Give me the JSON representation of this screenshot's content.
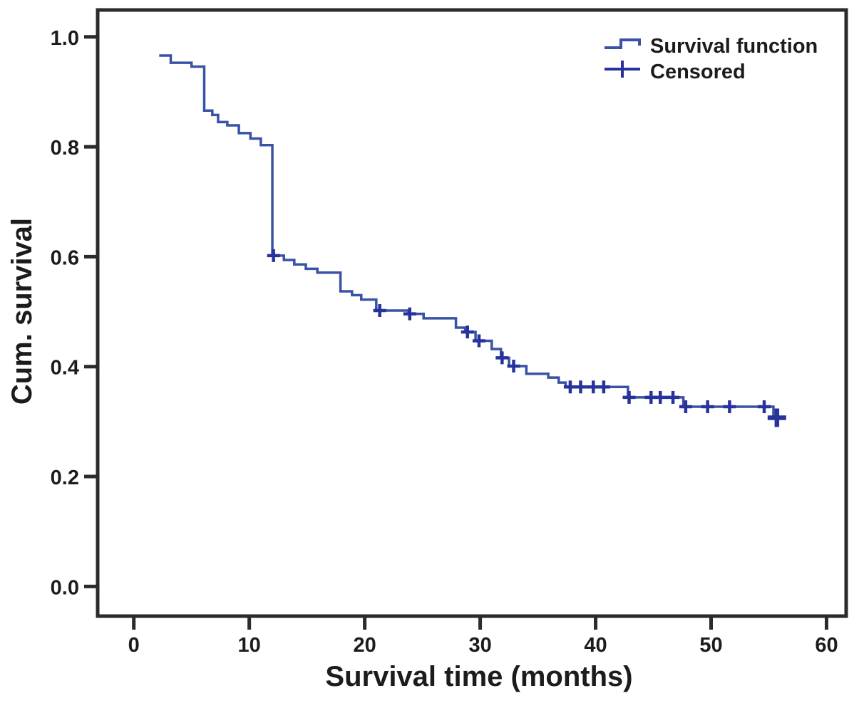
{
  "figure": {
    "background": "#ffffff",
    "plot_area_background": "#ffffff",
    "frame_color": "#2b2b2b"
  },
  "chart_data": {
    "type": "line",
    "subtype": "kaplan-meier-step",
    "title": "",
    "xlabel": "Survival time (months)",
    "ylabel": "Cum. survival",
    "grid": false,
    "xlim": [
      -3.13,
      61.7
    ],
    "ylim": [
      -0.054,
      1.049
    ],
    "x_ticks": [
      0,
      10,
      20,
      30,
      40,
      50,
      60
    ],
    "y_ticks": [
      {
        "v": 1.0,
        "label": "1.0"
      },
      {
        "v": 0.8,
        "label": "0.8"
      },
      {
        "v": 0.6,
        "label": "0.6"
      },
      {
        "v": 0.4,
        "label": "0.4"
      },
      {
        "v": 0.2,
        "label": "0.2"
      },
      {
        "v": 0.0,
        "label": "0.0"
      }
    ],
    "legend": {
      "position": "top-right",
      "entries": [
        {
          "label": "Survival function",
          "marker": "step-line"
        },
        {
          "label": "Censored",
          "marker": "plus"
        }
      ]
    },
    "colors": {
      "curve": "#3952a5",
      "censor": "#27339b",
      "axis": "#2b2b2b",
      "text": "#1c1c1c"
    },
    "series": [
      {
        "name": "Survival function",
        "start": [
          2.2,
          0.966
        ],
        "steps": [
          [
            3.2,
            0.953
          ],
          [
            5.0,
            0.946
          ],
          [
            6.1,
            0.866
          ],
          [
            6.8,
            0.858
          ],
          [
            7.3,
            0.845
          ],
          [
            8.1,
            0.839
          ],
          [
            9.1,
            0.825
          ],
          [
            10.1,
            0.815
          ],
          [
            11.0,
            0.803
          ],
          [
            12.0,
            0.602
          ],
          [
            13.0,
            0.594
          ],
          [
            13.9,
            0.586
          ],
          [
            14.9,
            0.578
          ],
          [
            15.9,
            0.571
          ],
          [
            17.9,
            0.537
          ],
          [
            18.9,
            0.53
          ],
          [
            19.7,
            0.522
          ],
          [
            21.0,
            0.502
          ],
          [
            23.8,
            0.496
          ],
          [
            25.1,
            0.488
          ],
          [
            27.9,
            0.471
          ],
          [
            28.7,
            0.463
          ],
          [
            29.6,
            0.447
          ],
          [
            31.0,
            0.432
          ],
          [
            31.8,
            0.416
          ],
          [
            32.5,
            0.401
          ],
          [
            34.0,
            0.387
          ],
          [
            35.9,
            0.38
          ],
          [
            36.8,
            0.371
          ],
          [
            37.4,
            0.363
          ],
          [
            42.8,
            0.344
          ],
          [
            47.6,
            0.327
          ],
          [
            55.4,
            0.307
          ]
        ],
        "end_time": 56.2
      }
    ],
    "censored": [
      {
        "t": 12.1,
        "s": 0.602
      },
      {
        "t": 21.3,
        "s": 0.502
      },
      {
        "t": 23.9,
        "s": 0.496
      },
      {
        "t": 28.9,
        "s": 0.463
      },
      {
        "t": 29.9,
        "s": 0.447
      },
      {
        "t": 31.9,
        "s": 0.416
      },
      {
        "t": 32.9,
        "s": 0.401
      },
      {
        "t": 37.8,
        "s": 0.363
      },
      {
        "t": 38.7,
        "s": 0.363
      },
      {
        "t": 39.8,
        "s": 0.363
      },
      {
        "t": 40.7,
        "s": 0.363
      },
      {
        "t": 42.9,
        "s": 0.344
      },
      {
        "t": 44.8,
        "s": 0.344
      },
      {
        "t": 45.6,
        "s": 0.344
      },
      {
        "t": 46.7,
        "s": 0.344
      },
      {
        "t": 47.8,
        "s": 0.327
      },
      {
        "t": 49.7,
        "s": 0.327
      },
      {
        "t": 51.6,
        "s": 0.327
      },
      {
        "t": 54.6,
        "s": 0.327
      },
      {
        "t": 55.7,
        "s": 0.307,
        "large": true
      }
    ]
  }
}
